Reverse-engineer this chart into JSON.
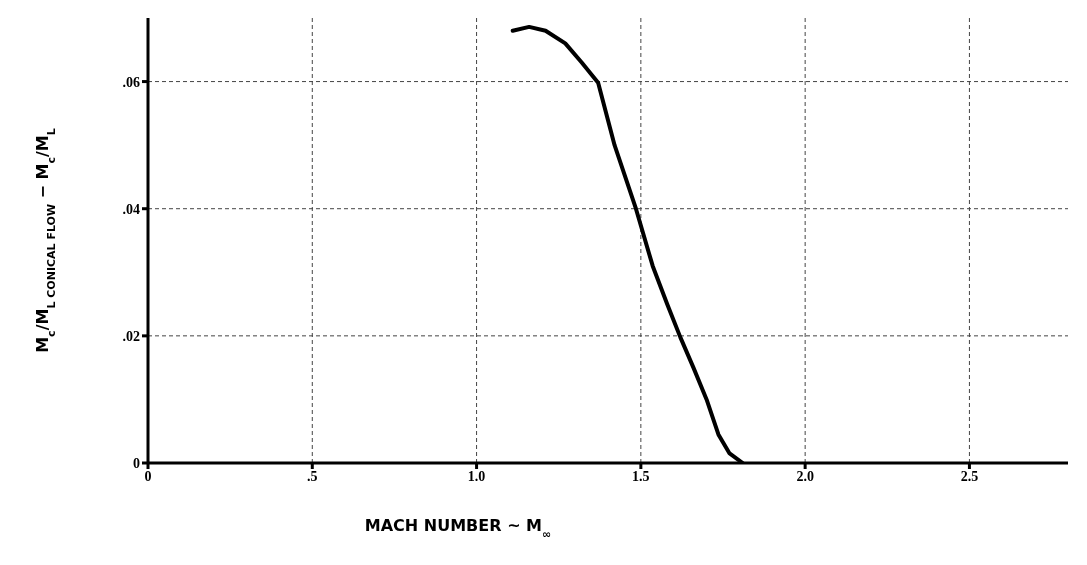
{
  "chart_data": {
    "type": "line",
    "xlabel": "MACH NUMBER ~ M$_{∞}$",
    "ylabel": "M$_{c}$/M$_{L}$$_{ CONICAL FLOW}$ − M$_{c}$/M$_{L}$",
    "x": [
      1.11,
      1.16,
      1.21,
      1.27,
      1.32,
      1.37,
      1.42,
      1.485,
      1.536,
      1.58,
      1.62,
      1.66,
      1.7,
      1.736,
      1.77,
      1.81
    ],
    "series": [
      {
        "color": "#000000",
        "values": [
          0.068,
          0.0686,
          0.068,
          0.066,
          0.063,
          0.0598,
          0.05,
          0.04,
          0.031,
          0.025,
          0.0198,
          0.015,
          0.01,
          0.0045,
          0.0015,
          0
        ]
      }
    ],
    "xlim": [
      0,
      2.8
    ],
    "ylim": [
      0,
      0.07
    ],
    "xticks": [
      0,
      {
        "value": 0.5,
        "label": ".5"
      },
      {
        "value": 1,
        "label": "1.0"
      },
      {
        "value": 1.5,
        "label": "1.5"
      },
      {
        "value": 2,
        "label": "2.0"
      },
      {
        "value": 2.5,
        "label": "2.5"
      }
    ],
    "yticks": [
      0,
      {
        "value": 0.02,
        "label": ".02"
      },
      {
        "value": 0.04,
        "label": ".04"
      },
      {
        "value": 0.06,
        "label": ".06"
      }
    ],
    "grid": true,
    "marker": "none",
    "line_style": "solid",
    "legend": false
  }
}
